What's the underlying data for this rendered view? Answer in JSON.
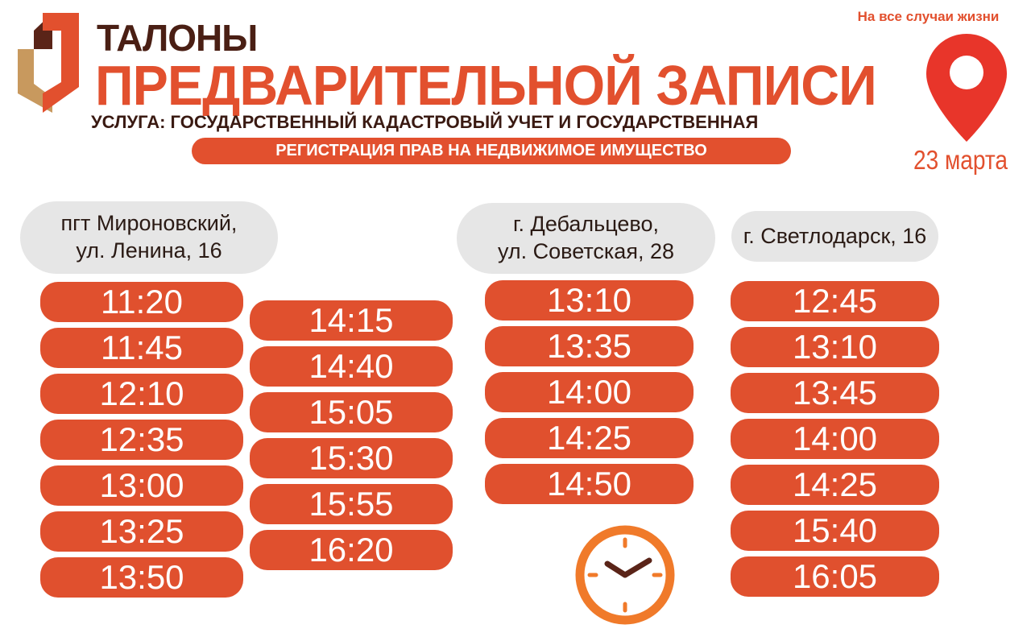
{
  "header": {
    "title_line1": "ТАЛОНЫ",
    "title_line2": "ПРЕДВАРИТЕЛЬНОЙ ЗАПИСИ",
    "service_line1": "УСЛУГА: ГОСУДАРСТВЕННЫЙ КАДАСТРОВЫЙ УЧЕТ И ГОСУДАРСТВЕННАЯ",
    "service_line2": "РЕГИСТРАЦИЯ ПРАВ НА НЕДВИЖИМОЕ ИМУЩЕСТВО",
    "tagline": "На все случаи жизни",
    "date": "23 марта"
  },
  "colors": {
    "accent": "#e2502e",
    "dark": "#4a1f14",
    "gold": "#c8995e",
    "grey": "#e6e6e6"
  },
  "icons": [
    "logo-mfc",
    "location-pin-icon",
    "clock-icon"
  ],
  "locations": [
    {
      "line1": "пгт Мироновский,",
      "line2": "ул. Ленина, 16",
      "times": [
        "11:20",
        "11:45",
        "12:10",
        "12:35",
        "13:00",
        "13:25",
        "13:50"
      ],
      "times2": [
        "14:15",
        "14:40",
        "15:05",
        "15:30",
        "15:55",
        "16:20"
      ]
    },
    {
      "line1": "г. Дебальцево,",
      "line2": "ул. Советская, 28",
      "times": [
        "13:10",
        "13:35",
        "14:00",
        "14:25",
        "14:50"
      ]
    },
    {
      "line1": "г. Светлодарск, 16",
      "times": [
        "12:45",
        "13:10",
        "13:45",
        "14:00",
        "14:25",
        "15:40",
        "16:05"
      ]
    }
  ]
}
